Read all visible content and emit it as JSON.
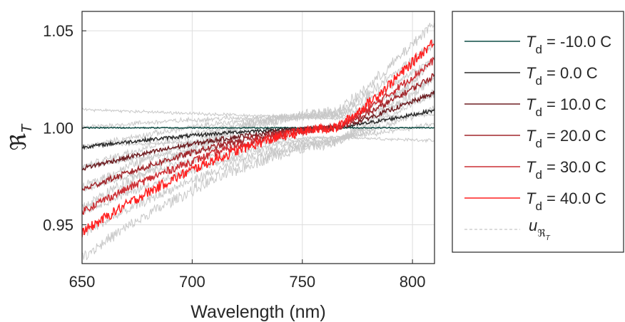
{
  "chart_data": {
    "type": "line",
    "xlabel": "Wavelength (nm)",
    "ylabel_symbol": "ℜ",
    "ylabel_subscript": "T",
    "xlim": [
      650,
      810
    ],
    "ylim": [
      0.93,
      1.06
    ],
    "x_ticks": [
      650,
      700,
      750,
      800
    ],
    "x_tick_labels": [
      "650",
      "700",
      "750",
      "800"
    ],
    "y_ticks": [
      0.95,
      1.0,
      1.05
    ],
    "y_tick_labels": [
      "0.95",
      "1.00",
      "1.05"
    ],
    "grid": true,
    "legend_position": "outside-right",
    "pivot_wavelength": 765,
    "series": [
      {
        "name_var": "T",
        "name_sub": "d",
        "name_rest": " = -10.0 C",
        "color": "#0f4d45",
        "start": 1.0,
        "end": 1.0,
        "noise": 0.0003
      },
      {
        "name_var": "T",
        "name_sub": "d",
        "name_rest": " = 0.0 C",
        "color": "#2b2b2b",
        "start": 0.99,
        "end": 1.009,
        "noise": 0.0009
      },
      {
        "name_var": "T",
        "name_sub": "d",
        "name_rest": " = 10.0 C",
        "color": "#6e1e22",
        "start": 0.979,
        "end": 1.018,
        "noise": 0.0012
      },
      {
        "name_var": "T",
        "name_sub": "d",
        "name_rest": " = 20.0 C",
        "color": "#a0262b",
        "start": 0.968,
        "end": 1.027,
        "noise": 0.0016
      },
      {
        "name_var": "T",
        "name_sub": "d",
        "name_rest": " = 30.0 C",
        "color": "#cc2e33",
        "start": 0.957,
        "end": 1.035,
        "noise": 0.002
      },
      {
        "name_var": "T",
        "name_sub": "d",
        "name_rest": " = 40.0 C",
        "color": "#ff1f1f",
        "start": 0.946,
        "end": 1.045,
        "noise": 0.0026
      }
    ],
    "uncertainty_legend": {
      "symbol": "u",
      "sub_symbol": "ℜ",
      "sub_sub": "T",
      "color": "#c8c8c8",
      "spread": 0.008
    }
  }
}
